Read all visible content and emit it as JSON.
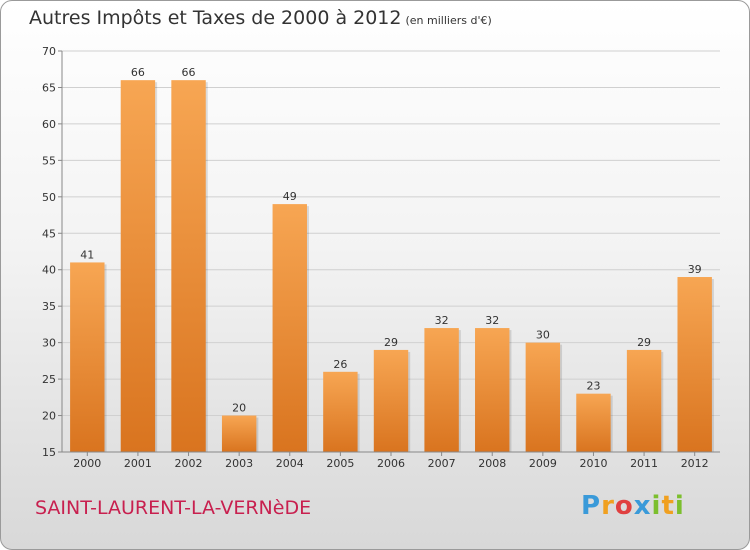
{
  "header": {
    "title": "Autres Impôts et Taxes de 2000 à 2012",
    "unit": "(en milliers d'€)"
  },
  "footer": {
    "commune": "SAINT-LAURENT-LA-VERNèDE",
    "logo_letters": [
      "P",
      "r",
      "o",
      "x",
      "i",
      "t",
      "i"
    ],
    "logo_colors": [
      "#3a9ad9",
      "#f0a020",
      "#e04040",
      "#3a9ad9",
      "#7cbf2e",
      "#f0a020",
      "#7cbf2e"
    ]
  },
  "colors": {
    "bar_light": "#f7a653",
    "bar_dark": "#d9741f",
    "grid": "#d0d0d0",
    "axis": "#888888"
  },
  "chart_data": {
    "type": "bar",
    "title": "Autres Impôts et Taxes de 2000 à 2012",
    "subtitle": "(en milliers d'€)",
    "categories": [
      "2000",
      "2001",
      "2002",
      "2003",
      "2004",
      "2005",
      "2006",
      "2007",
      "2008",
      "2009",
      "2010",
      "2011",
      "2012"
    ],
    "values": [
      41,
      66,
      66,
      20,
      49,
      26,
      29,
      32,
      32,
      30,
      23,
      29,
      39
    ],
    "ylim": [
      15,
      70
    ],
    "yticks": [
      15,
      20,
      25,
      30,
      35,
      40,
      45,
      50,
      55,
      60,
      65,
      70
    ],
    "grid": true,
    "data_labels": true
  }
}
